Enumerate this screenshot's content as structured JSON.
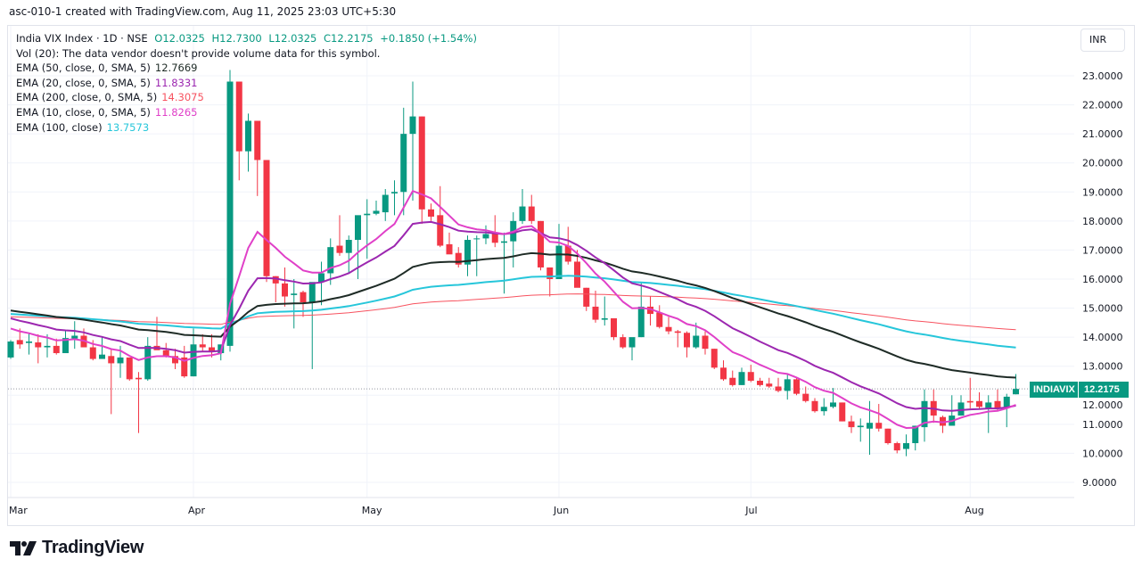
{
  "caption": "asc-010-1 created with TradingView.com, Aug 11, 2025 23:03 UTC+5:30",
  "legend": {
    "symbol": "India VIX Index · 1D · NSE",
    "open": "O12.0325",
    "high": "H12.7300",
    "low": "L12.0325",
    "close": "C12.2175",
    "change": "+0.1850 (+1.54%)",
    "volume_note": "Vol (20): The data vendor doesn't provide volume data for this symbol.",
    "indicators": [
      {
        "label": "EMA (50, close, 0, SMA, 5)",
        "value": "12.7669",
        "color": "#1e2b26"
      },
      {
        "label": "EMA (20, close, 0, SMA, 5)",
        "value": "11.8331",
        "color": "#9c27b0"
      },
      {
        "label": "EMA (200, close, 0, SMA, 5)",
        "value": "14.3075",
        "color": "#f7525f"
      },
      {
        "label": "EMA (10, close, 0, SMA, 5)",
        "value": "11.8265",
        "color": "#e040c8"
      },
      {
        "label": "EMA (100, close)",
        "value": "13.7573",
        "color": "#26c6da"
      }
    ]
  },
  "currency": "INR",
  "last_price": {
    "symbol": "INDIAVIX",
    "value": "12.2175"
  },
  "brand": "TradingView",
  "colors": {
    "up": "#089981",
    "down": "#f23645",
    "grid": "#f0f3fa",
    "price_line": "#9598a1"
  },
  "chart_data": {
    "type": "candlestick",
    "title": "India VIX Index · 1D · NSE",
    "ylim": [
      8.4,
      24.3
    ],
    "y_ticks": [
      "23.0000",
      "22.0000",
      "21.0000",
      "20.0000",
      "19.0000",
      "18.0000",
      "17.0000",
      "16.0000",
      "15.0000",
      "14.0000",
      "13.0000",
      "12.0000",
      "11.0000",
      "10.0000",
      "9.0000"
    ],
    "x_ticks": [
      {
        "label": "Mar",
        "index": 0
      },
      {
        "label": "Apr",
        "index": 20
      },
      {
        "label": "May",
        "index": 39
      },
      {
        "label": "Jun",
        "index": 60
      },
      {
        "label": "Jul",
        "index": 81
      },
      {
        "label": "Aug",
        "index": 105
      }
    ],
    "grid": true,
    "ema_start": {
      "ema50": 14.92,
      "ema20": 14.65,
      "ema200": 14.7,
      "ema10": 14.3,
      "ema100": 14.8
    },
    "candles_ohlc": [
      [
        13.3,
        13.9,
        13.25,
        13.85
      ],
      [
        13.9,
        14.3,
        13.6,
        13.75
      ],
      [
        13.8,
        14.15,
        13.4,
        13.85
      ],
      [
        13.82,
        14.1,
        13.1,
        13.65
      ],
      [
        13.65,
        14.1,
        13.3,
        13.7
      ],
      [
        13.7,
        13.95,
        13.4,
        13.45
      ],
      [
        13.45,
        14.25,
        13.45,
        13.97
      ],
      [
        13.95,
        14.55,
        13.6,
        14.05
      ],
      [
        14.05,
        14.3,
        13.7,
        13.65
      ],
      [
        13.65,
        13.9,
        13.2,
        13.25
      ],
      [
        13.25,
        14.0,
        13.25,
        13.4
      ],
      [
        13.35,
        13.6,
        11.35,
        13.1
      ],
      [
        13.1,
        13.7,
        12.6,
        13.3
      ],
      [
        13.3,
        13.3,
        12.5,
        12.55
      ],
      [
        12.6,
        12.8,
        10.7,
        12.55
      ],
      [
        12.55,
        14.0,
        12.5,
        13.7
      ],
      [
        13.7,
        14.7,
        13.6,
        13.55
      ],
      [
        13.55,
        13.8,
        13.3,
        13.35
      ],
      [
        13.35,
        13.6,
        12.9,
        13.1
      ],
      [
        13.3,
        13.7,
        12.6,
        12.65
      ],
      [
        12.65,
        14.3,
        12.65,
        13.75
      ],
      [
        13.75,
        14.1,
        13.5,
        13.65
      ],
      [
        13.65,
        14.1,
        13.3,
        13.5
      ],
      [
        13.45,
        13.7,
        13.2,
        13.75
      ],
      [
        13.7,
        23.2,
        13.5,
        22.8
      ],
      [
        22.8,
        22.8,
        19.4,
        20.4
      ],
      [
        20.4,
        21.7,
        19.7,
        21.45
      ],
      [
        21.45,
        21.45,
        18.86,
        20.1
      ],
      [
        20.1,
        20.1,
        15.9,
        16.1
      ],
      [
        16.1,
        16.1,
        15.2,
        15.85
      ],
      [
        15.85,
        16.4,
        15.05,
        15.4
      ],
      [
        15.45,
        16.0,
        14.3,
        15.5
      ],
      [
        15.55,
        15.6,
        14.7,
        15.2
      ],
      [
        15.2,
        15.8,
        12.9,
        15.9
      ],
      [
        15.9,
        16.6,
        15.1,
        16.2
      ],
      [
        16.2,
        17.4,
        15.8,
        17.1
      ],
      [
        17.15,
        18.2,
        16.8,
        16.9
      ],
      [
        16.9,
        17.5,
        16.2,
        17.35
      ],
      [
        17.35,
        18.1,
        16.0,
        18.2
      ],
      [
        18.2,
        18.75,
        16.7,
        18.25
      ],
      [
        18.25,
        18.7,
        18.2,
        18.35
      ],
      [
        18.3,
        19.1,
        18.0,
        18.9
      ],
      [
        18.95,
        19.4,
        18.2,
        19.0
      ],
      [
        19.0,
        21.9,
        18.2,
        21.0
      ],
      [
        21.0,
        22.8,
        18.7,
        21.6
      ],
      [
        21.6,
        21.6,
        17.9,
        18.4
      ],
      [
        18.4,
        18.6,
        18.0,
        18.15
      ],
      [
        18.2,
        19.2,
        17.1,
        17.15
      ],
      [
        17.2,
        17.6,
        16.9,
        16.85
      ],
      [
        16.9,
        17.1,
        16.4,
        16.5
      ],
      [
        16.5,
        17.5,
        16.1,
        17.35
      ],
      [
        17.4,
        17.5,
        16.1,
        17.4
      ],
      [
        17.4,
        17.85,
        17.2,
        17.55
      ],
      [
        17.55,
        18.2,
        17.1,
        17.25
      ],
      [
        17.25,
        17.6,
        15.5,
        17.3
      ],
      [
        17.3,
        18.3,
        16.4,
        18.0
      ],
      [
        18.0,
        19.1,
        17.9,
        18.5
      ],
      [
        18.5,
        18.9,
        17.9,
        18.0
      ],
      [
        18.0,
        18.0,
        16.3,
        16.4
      ],
      [
        16.4,
        16.4,
        15.4,
        16.0
      ],
      [
        16.0,
        17.9,
        16.0,
        17.15
      ],
      [
        17.15,
        17.8,
        16.5,
        16.6
      ],
      [
        16.6,
        17.0,
        16.0,
        15.7
      ],
      [
        15.7,
        15.7,
        14.9,
        15.05
      ],
      [
        15.05,
        15.6,
        14.5,
        14.6
      ],
      [
        14.6,
        15.4,
        14.4,
        14.65
      ],
      [
        14.65,
        14.65,
        13.9,
        14.0
      ],
      [
        14.0,
        14.1,
        13.6,
        13.65
      ],
      [
        13.65,
        13.9,
        13.2,
        14.0
      ],
      [
        14.0,
        15.9,
        14.0,
        15.05
      ],
      [
        15.05,
        15.4,
        14.4,
        14.8
      ],
      [
        14.85,
        15.1,
        14.3,
        14.35
      ],
      [
        14.35,
        14.7,
        14.1,
        14.2
      ],
      [
        14.2,
        14.25,
        13.65,
        14.15
      ],
      [
        14.15,
        14.2,
        13.3,
        13.65
      ],
      [
        13.65,
        14.5,
        13.6,
        14.05
      ],
      [
        14.05,
        14.2,
        13.4,
        13.6
      ],
      [
        13.6,
        13.6,
        12.9,
        12.95
      ],
      [
        12.95,
        13.2,
        12.5,
        12.55
      ],
      [
        12.6,
        12.85,
        12.3,
        12.35
      ],
      [
        12.35,
        12.95,
        12.35,
        12.8
      ],
      [
        12.8,
        13.05,
        12.45,
        12.5
      ],
      [
        12.5,
        12.6,
        12.3,
        12.35
      ],
      [
        12.4,
        12.6,
        12.25,
        12.3
      ],
      [
        12.3,
        12.6,
        12.1,
        12.15
      ],
      [
        12.15,
        12.75,
        11.85,
        12.55
      ],
      [
        12.55,
        12.6,
        12.0,
        12.05
      ],
      [
        12.05,
        12.3,
        11.75,
        11.8
      ],
      [
        11.8,
        11.9,
        11.4,
        11.45
      ],
      [
        11.45,
        11.9,
        11.3,
        11.6
      ],
      [
        11.6,
        12.25,
        11.55,
        11.75
      ],
      [
        11.75,
        11.75,
        11.1,
        11.1
      ],
      [
        11.1,
        11.3,
        10.7,
        10.9
      ],
      [
        10.9,
        11.2,
        10.4,
        10.95
      ],
      [
        10.85,
        11.8,
        9.95,
        11.05
      ],
      [
        11.05,
        11.7,
        10.75,
        10.85
      ],
      [
        10.85,
        10.85,
        10.3,
        10.35
      ],
      [
        10.35,
        10.4,
        10.0,
        10.1
      ],
      [
        10.15,
        10.65,
        9.9,
        10.35
      ],
      [
        10.35,
        10.95,
        10.1,
        10.95
      ],
      [
        10.9,
        12.2,
        10.4,
        11.8
      ],
      [
        11.8,
        12.2,
        11.05,
        11.3
      ],
      [
        11.25,
        11.3,
        10.7,
        10.95
      ],
      [
        10.95,
        12.0,
        10.95,
        11.3
      ],
      [
        11.3,
        12.0,
        11.3,
        11.75
      ],
      [
        11.8,
        12.6,
        11.55,
        11.75
      ],
      [
        11.8,
        12.1,
        11.5,
        11.6
      ],
      [
        11.55,
        12.0,
        10.7,
        11.75
      ],
      [
        11.8,
        12.2,
        11.45,
        11.55
      ],
      [
        11.6,
        12.05,
        10.9,
        11.95
      ],
      [
        12.0325,
        12.73,
        12.0325,
        12.2175
      ]
    ]
  }
}
